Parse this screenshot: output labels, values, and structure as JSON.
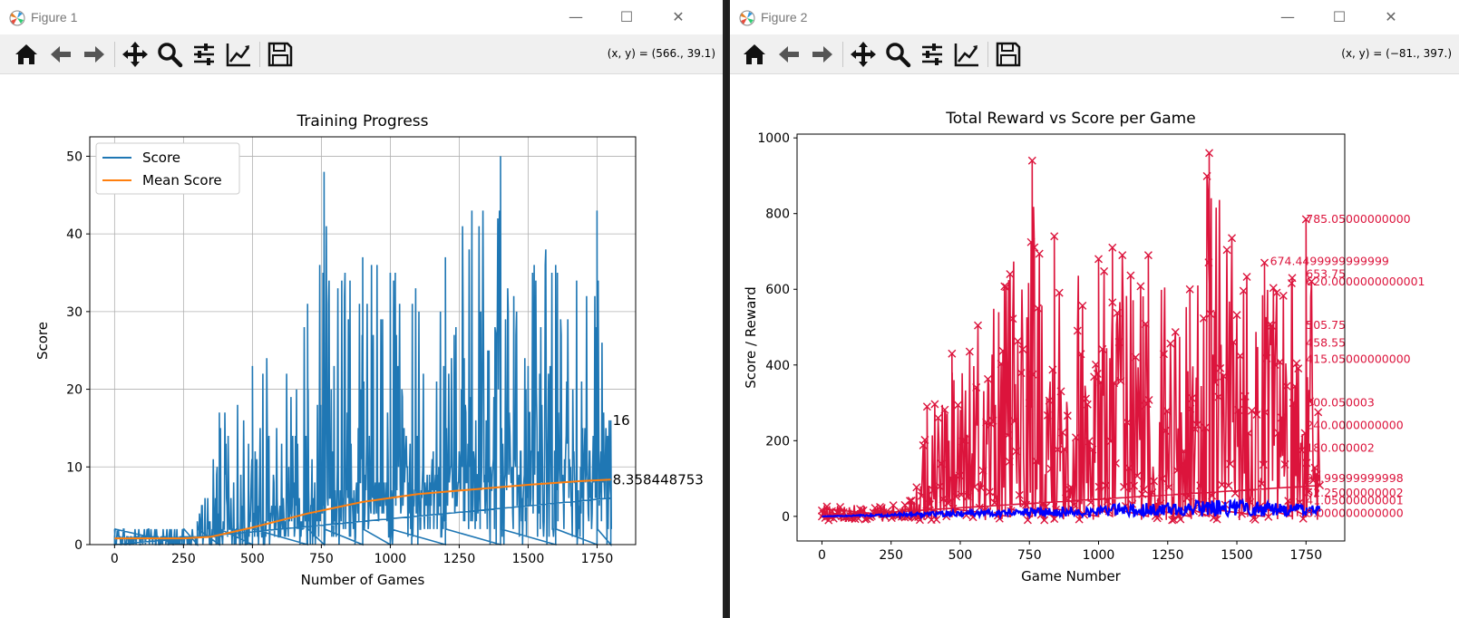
{
  "colors": {
    "score_line": "#1f77b4",
    "mean_line": "#ff7f0e",
    "reward_line": "#dc143c",
    "score2_line": "#0000ff"
  },
  "window1": {
    "title": "Figure 1",
    "coords": "(x, y) = (566., 39.1)",
    "toolbar_icons": [
      "home-icon",
      "back-icon",
      "forward-icon",
      "pan-icon",
      "zoom-icon",
      "configure-icon",
      "edit-axis-icon",
      "save-icon"
    ]
  },
  "window2": {
    "title": "Figure 2",
    "coords": "(x, y) = (−81., 397.)",
    "toolbar_icons": [
      "home-icon",
      "back-icon",
      "forward-icon",
      "pan-icon",
      "zoom-icon",
      "configure-icon",
      "edit-axis-icon",
      "save-icon"
    ]
  },
  "chart_data": [
    {
      "type": "line",
      "title": "Training Progress",
      "xlabel": "Number of Games",
      "ylabel": "Score",
      "xlim": [
        -90,
        1890
      ],
      "ylim": [
        0,
        52.5
      ],
      "xticks": [
        "0",
        "250",
        "500",
        "750",
        "1000",
        "1250",
        "1500",
        "1750"
      ],
      "yticks": [
        "0",
        "10",
        "20",
        "30",
        "40",
        "50"
      ],
      "grid": true,
      "legend_position": "top-left",
      "series": [
        {
          "name": "Score",
          "x": [
            0,
            250,
            300,
            380,
            500,
            700,
            760,
            900,
            1000,
            1200,
            1400,
            1600,
            1750,
            1800
          ],
          "values": [
            1,
            2,
            3,
            17,
            23,
            31,
            48,
            37,
            35,
            37,
            50,
            36,
            43,
            16
          ]
        },
        {
          "name": "Mean Score",
          "x": [
            0,
            250,
            350,
            500,
            700,
            900,
            1100,
            1300,
            1500,
            1700,
            1800
          ],
          "values": [
            0.8,
            0.8,
            1.0,
            2.2,
            4.0,
            5.5,
            6.5,
            7.1,
            7.7,
            8.2,
            8.36
          ]
        }
      ],
      "annotations": [
        "16",
        "8.358448753"
      ]
    },
    {
      "type": "line",
      "title": "Total Reward vs Score per Game",
      "xlabel": "Game Number",
      "ylabel": "Score / Reward",
      "xlim": [
        -90,
        1890
      ],
      "ylim": [
        -65,
        1010
      ],
      "xticks": [
        "0",
        "250",
        "500",
        "750",
        "1000",
        "1250",
        "1500",
        "1750"
      ],
      "yticks": [
        "0",
        "200",
        "400",
        "600",
        "800",
        "1000"
      ],
      "grid": false,
      "series": [
        {
          "name": "",
          "x": [
            0,
            300,
            380,
            470,
            680,
            760,
            840,
            1000,
            1050,
            1180,
            1330,
            1400,
            1600,
            1700,
            1750
          ],
          "values": [
            0,
            30,
            290,
            430,
            640,
            940,
            740,
            680,
            710,
            690,
            600,
            960,
            670,
            630,
            785
          ]
        },
        {
          "name": "",
          "x": [
            0,
            500,
            1000,
            1500,
            1800
          ],
          "values": [
            0,
            10,
            20,
            30,
            20
          ]
        }
      ],
      "annotations": [
        "785.05000000000",
        "674.4499999999999",
        "653.75",
        "620.0000000000001",
        "505.75",
        "458.55",
        "415.05000000000",
        "300.050003",
        "240.0000000000",
        "180.000002",
        "99.99999999998",
        "62.25000000002",
        "41.05000000001",
        "8.000000000000"
      ]
    }
  ]
}
